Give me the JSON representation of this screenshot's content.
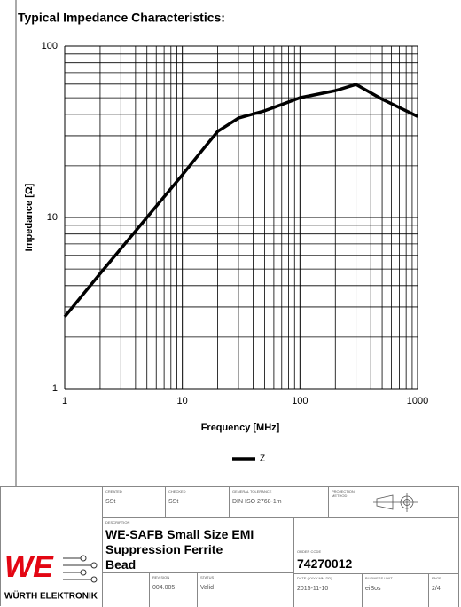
{
  "chart_data": {
    "type": "line",
    "title": "Typical Impedance Characteristics:",
    "xlabel": "Frequency [MHz]",
    "ylabel": "Impedance [Ω]",
    "x": [
      1,
      2,
      5,
      10,
      15,
      20,
      30,
      50,
      70,
      100,
      200,
      300,
      500,
      1000
    ],
    "series": [
      {
        "name": "Z",
        "color": "#000000",
        "values": [
          2.63,
          4.7,
          10,
          17.7,
          25,
          31.8,
          38,
          41.9,
          45.6,
          50,
          55,
          59.8,
          49,
          38.9
        ]
      }
    ],
    "xlim": [
      1,
      1000
    ],
    "ylim": [
      1,
      100
    ],
    "xticks": [
      1,
      10,
      100,
      1000
    ],
    "yticks": [
      1,
      10,
      100
    ],
    "xminorticks": [
      2,
      3,
      4,
      5,
      6,
      7,
      8,
      9,
      20,
      30,
      40,
      50,
      60,
      70,
      80,
      90,
      200,
      300,
      400,
      500,
      600,
      700,
      800,
      900
    ],
    "yminorticks": [
      2,
      3,
      4,
      5,
      6,
      7,
      8,
      9,
      20,
      30,
      40,
      50,
      60,
      70,
      80,
      90
    ],
    "xscale": "log",
    "yscale": "log",
    "grid": true,
    "legend": "bottom"
  },
  "title_block": {
    "logo": {
      "mark": "WE",
      "name": "WÜRTH ELEKTRONIK"
    },
    "created": {
      "label": "CREATED",
      "value": "SSt"
    },
    "checked": {
      "label": "CHECKED",
      "value": "SSt"
    },
    "tolerance": {
      "label": "GENERAL TOLERANCE",
      "value": "DIN ISO 2768-1m"
    },
    "projection": {
      "label": "PROJECTION METHOD"
    },
    "description": {
      "label": "DESCRIPTION",
      "value": "WE-SAFB Small Size EMI Suppression Ferrite Bead"
    },
    "order_code": {
      "label": "ORDER CODE",
      "value": "74270012"
    },
    "revision": {
      "label": "REVISION",
      "value": "004.005"
    },
    "status": {
      "label": "STATUS",
      "value": "Valid"
    },
    "date": {
      "label": "DATE (YYYY-MM-DD)",
      "value": "2015-11-10"
    },
    "business_unit": {
      "label": "BUSINESS UNIT",
      "value": "eiSos"
    },
    "page": {
      "label": "PAGE",
      "value": "2/4"
    }
  }
}
